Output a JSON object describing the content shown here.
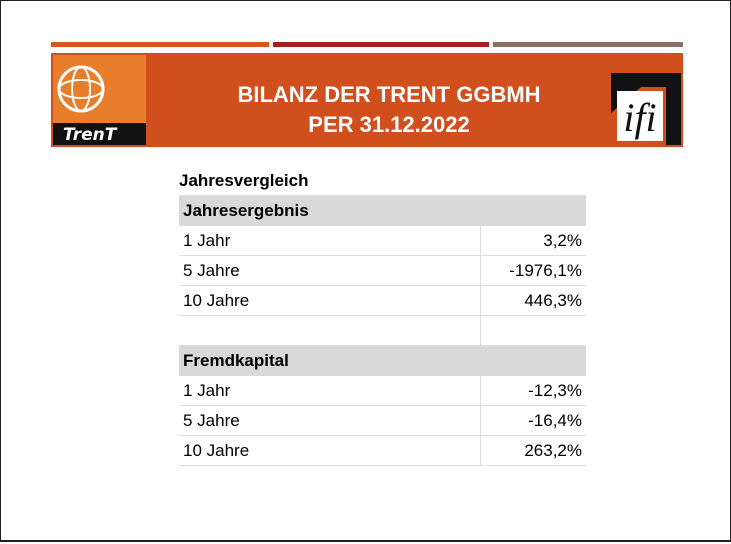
{
  "header": {
    "title_lines": [
      "BILANZ DER TRENT GGBMH",
      "PER 31.12.2022"
    ],
    "left_logo_text": "TrenT",
    "right_logo_text": "ifi"
  },
  "table": {
    "title": "Jahresvergleich",
    "sections": [
      {
        "label": "Jahresergebnis",
        "rows": [
          [
            "1 Jahr",
            "3,2%"
          ],
          [
            "5 Jahre",
            "-1976,1%"
          ],
          [
            "10 Jahre",
            "446,3%"
          ]
        ]
      },
      {
        "label": "Fremdkapital",
        "rows": [
          [
            "1 Jahr",
            "-12,3%"
          ],
          [
            "5 Jahre",
            "-16,4%"
          ],
          [
            "10 Jahre",
            "263,2%"
          ]
        ]
      }
    ]
  }
}
